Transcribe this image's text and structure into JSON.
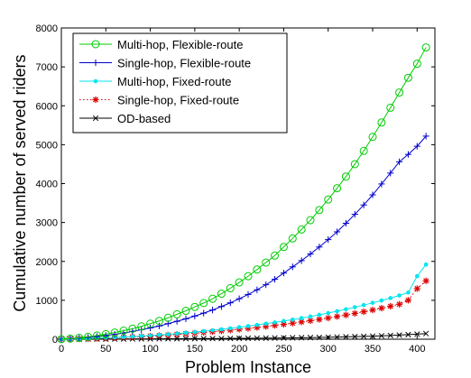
{
  "chart_data": {
    "type": "line",
    "title": "",
    "xlabel": "Problem Instance",
    "ylabel": "Cumulative number of served riders",
    "xlim": [
      0,
      420
    ],
    "ylim": [
      0,
      8000
    ],
    "xticks": [
      0,
      50,
      100,
      150,
      200,
      250,
      300,
      350,
      400
    ],
    "yticks": [
      0,
      1000,
      2000,
      3000,
      4000,
      5000,
      6000,
      7000,
      8000
    ],
    "grid": false,
    "legend_position": "top-left",
    "x": [
      0,
      10,
      20,
      30,
      40,
      50,
      60,
      70,
      80,
      90,
      100,
      110,
      120,
      130,
      140,
      150,
      160,
      170,
      180,
      190,
      200,
      210,
      220,
      230,
      240,
      250,
      260,
      270,
      280,
      290,
      300,
      310,
      320,
      330,
      340,
      350,
      360,
      370,
      380,
      390,
      400,
      410
    ],
    "series": [
      {
        "name": "Multi-hop, Flexible-route",
        "color": "#00cc00",
        "marker": "circle",
        "line": "solid",
        "values": [
          0,
          15,
          35,
          60,
          95,
          130,
          170,
          220,
          270,
          330,
          400,
          470,
          550,
          640,
          730,
          830,
          930,
          1040,
          1170,
          1310,
          1460,
          1620,
          1790,
          1970,
          2150,
          2370,
          2590,
          2820,
          3060,
          3320,
          3590,
          3880,
          4180,
          4500,
          4840,
          5200,
          5570,
          5950,
          6340,
          6720,
          7080,
          7500
        ]
      },
      {
        "name": "Single-hop, Flexible-route",
        "color": "#0000cc",
        "marker": "plus",
        "line": "solid",
        "values": [
          0,
          10,
          25,
          45,
          70,
          95,
          125,
          160,
          200,
          245,
          290,
          340,
          400,
          460,
          525,
          595,
          670,
          750,
          840,
          935,
          1040,
          1150,
          1270,
          1400,
          1540,
          1700,
          1860,
          2020,
          2190,
          2370,
          2560,
          2760,
          2980,
          3210,
          3450,
          3710,
          3990,
          4270,
          4560,
          4750,
          4960,
          5220
        ]
      },
      {
        "name": "Multi-hop, Fixed-route",
        "color": "#00e5ee",
        "marker": "dot",
        "line": "solid",
        "values": [
          0,
          5,
          10,
          18,
          26,
          35,
          45,
          56,
          68,
          81,
          95,
          110,
          126,
          144,
          163,
          184,
          206,
          229,
          254,
          280,
          308,
          337,
          367,
          399,
          432,
          467,
          504,
          543,
          584,
          627,
          672,
          720,
          770,
          822,
          877,
          935,
          995,
          1058,
          1124,
          1200,
          1620,
          1920
        ]
      },
      {
        "name": "Single-hop, Fixed-route",
        "color": "#dd0000",
        "marker": "star",
        "line": "dotted",
        "values": [
          0,
          4,
          9,
          15,
          22,
          30,
          39,
          48,
          58,
          69,
          81,
          94,
          108,
          123,
          139,
          156,
          174,
          193,
          213,
          234,
          256,
          279,
          303,
          328,
          355,
          383,
          412,
          443,
          475,
          509,
          545,
          583,
          622,
          663,
          706,
          751,
          798,
          847,
          898,
          1000,
          1300,
          1500
        ]
      },
      {
        "name": "OD-based",
        "color": "#000000",
        "marker": "x",
        "line": "solid",
        "values": [
          0,
          1,
          2,
          3,
          4,
          5,
          6,
          7,
          8,
          9,
          10,
          11,
          12,
          13,
          14,
          15,
          16,
          17,
          18,
          20,
          22,
          24,
          26,
          28,
          30,
          33,
          36,
          39,
          42,
          46,
          50,
          55,
          60,
          66,
          72,
          79,
          87,
          96,
          106,
          118,
          130,
          145
        ]
      }
    ]
  }
}
